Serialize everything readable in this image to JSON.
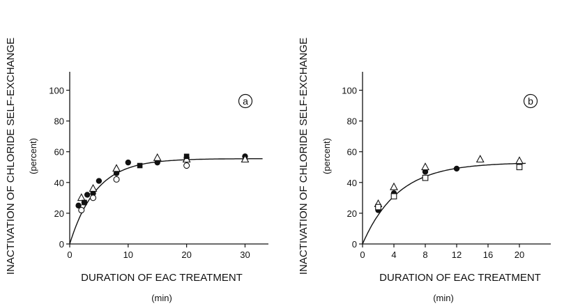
{
  "chart_data": [
    {
      "type": "scatter",
      "panel_label": "a",
      "xlabel": "DURATION OF EAC TREATMENT",
      "xunit": "(min)",
      "ylabel": "INACTIVATION OF CHLORIDE SELF-EXCHANGE",
      "yunit": "(percent)",
      "xlim": [
        0,
        34
      ],
      "ylim": [
        0,
        112
      ],
      "xticks": [
        0,
        10,
        20,
        30
      ],
      "yticks": [
        0,
        20,
        40,
        60,
        80,
        100
      ],
      "grid": false,
      "fit_curve": {
        "plateau": 55.5,
        "rate": 0.22
      },
      "series": [
        {
          "marker": "filled-circle",
          "points": [
            [
              1.5,
              25
            ],
            [
              2.5,
              27
            ],
            [
              3,
              32
            ],
            [
              4,
              33
            ],
            [
              5,
              41
            ],
            [
              8,
              46
            ],
            [
              10,
              53
            ],
            [
              15,
              53
            ],
            [
              20,
              56
            ],
            [
              30,
              57
            ]
          ]
        },
        {
          "marker": "open-circle",
          "points": [
            [
              2,
              22
            ],
            [
              4,
              30
            ],
            [
              8,
              42
            ],
            [
              20,
              51
            ]
          ]
        },
        {
          "marker": "open-triangle",
          "points": [
            [
              2,
              30
            ],
            [
              4,
              36
            ],
            [
              8,
              49
            ],
            [
              15,
              56
            ],
            [
              20,
              55
            ],
            [
              30,
              55
            ]
          ]
        },
        {
          "marker": "filled-square",
          "points": [
            [
              2.5,
              27
            ],
            [
              12,
              51
            ],
            [
              20,
              57
            ]
          ]
        }
      ]
    },
    {
      "type": "scatter",
      "panel_label": "b",
      "xlabel": "DURATION OF EAC TREATMENT",
      "xunit": "(min)",
      "ylabel": "INACTIVATION OF CHLORIDE SELF-EXCHANGE",
      "yunit": "(percent)",
      "xlim": [
        0,
        24
      ],
      "ylim": [
        0,
        112
      ],
      "xticks": [
        0,
        4,
        8,
        12,
        16,
        20
      ],
      "yticks": [
        0,
        20,
        40,
        60,
        80,
        100
      ],
      "grid": false,
      "fit_curve": {
        "plateau": 53,
        "rate": 0.22
      },
      "series": [
        {
          "marker": "filled-circle",
          "points": [
            [
              2,
              22
            ],
            [
              4,
              33
            ],
            [
              8,
              47
            ],
            [
              12,
              49
            ],
            [
              20,
              52
            ]
          ]
        },
        {
          "marker": "open-triangle",
          "points": [
            [
              2,
              26
            ],
            [
              4,
              37
            ],
            [
              8,
              50
            ],
            [
              15,
              55
            ],
            [
              20,
              54
            ]
          ]
        },
        {
          "marker": "open-square",
          "points": [
            [
              2,
              24
            ],
            [
              4,
              31
            ],
            [
              8,
              43
            ],
            [
              20,
              50
            ]
          ]
        }
      ]
    }
  ]
}
